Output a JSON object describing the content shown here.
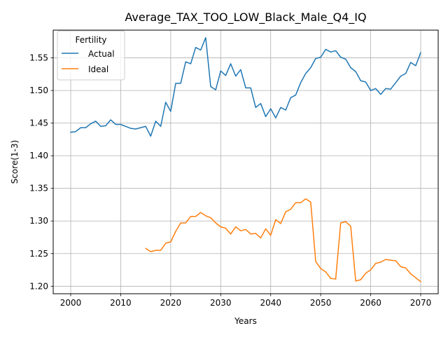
{
  "chart_data": {
    "type": "line",
    "title": "Average_TAX_TOO_LOW_Black_Male_Q4_IQ",
    "xlabel": "Years",
    "ylabel": "Score(1-3)",
    "xlim": [
      1996.5,
      2073.5
    ],
    "ylim": [
      1.1885,
      1.5925
    ],
    "xticks": [
      2000,
      2010,
      2020,
      2030,
      2040,
      2050,
      2060,
      2070
    ],
    "xtick_labels": [
      "2000",
      "2010",
      "2020",
      "2030",
      "2040",
      "2050",
      "2060",
      "2070"
    ],
    "yticks": [
      1.2,
      1.25,
      1.3,
      1.35,
      1.4,
      1.45,
      1.5,
      1.55
    ],
    "ytick_labels": [
      "1.20",
      "1.25",
      "1.30",
      "1.35",
      "1.40",
      "1.45",
      "1.50",
      "1.55"
    ],
    "grid": true,
    "legend": {
      "title": "Fertility",
      "placement": "top-left"
    },
    "series": [
      {
        "name": "Actual",
        "color": "#1f77b4",
        "x": [
          2000,
          2001,
          2002,
          2003,
          2004,
          2005,
          2006,
          2007,
          2008,
          2009,
          2010,
          2011,
          2012,
          2013,
          2014,
          2015,
          2016,
          2017,
          2018,
          2019,
          2020,
          2021,
          2022,
          2023,
          2024,
          2025,
          2026,
          2027,
          2028,
          2029,
          2030,
          2031,
          2032,
          2033,
          2034,
          2035,
          2036,
          2037,
          2038,
          2039,
          2040,
          2041,
          2042,
          2043,
          2044,
          2045,
          2046,
          2047,
          2048,
          2049,
          2050,
          2051,
          2052,
          2053,
          2054,
          2055,
          2056,
          2057,
          2058,
          2059,
          2060,
          2061,
          2062,
          2063,
          2064,
          2065,
          2066,
          2067,
          2068,
          2069,
          2070
        ],
        "values": [
          1.436,
          1.437,
          1.443,
          1.443,
          1.449,
          1.453,
          1.445,
          1.446,
          1.455,
          1.448,
          1.448,
          1.445,
          1.442,
          1.441,
          1.443,
          1.445,
          1.43,
          1.453,
          1.445,
          1.482,
          1.468,
          1.511,
          1.511,
          1.544,
          1.541,
          1.566,
          1.562,
          1.581,
          1.506,
          1.501,
          1.53,
          1.523,
          1.541,
          1.522,
          1.532,
          1.504,
          1.504,
          1.474,
          1.48,
          1.46,
          1.472,
          1.458,
          1.474,
          1.47,
          1.489,
          1.493,
          1.512,
          1.526,
          1.535,
          1.549,
          1.551,
          1.563,
          1.559,
          1.561,
          1.551,
          1.548,
          1.535,
          1.529,
          1.515,
          1.513,
          1.5,
          1.503,
          1.494,
          1.503,
          1.502,
          1.512,
          1.522,
          1.526,
          1.543,
          1.538,
          1.558
        ]
      },
      {
        "name": "Ideal",
        "color": "#ff7f0e",
        "x": [
          2015,
          2016,
          2017,
          2018,
          2019,
          2020,
          2021,
          2022,
          2023,
          2024,
          2025,
          2026,
          2027,
          2028,
          2029,
          2030,
          2031,
          2032,
          2033,
          2034,
          2035,
          2036,
          2037,
          2038,
          2039,
          2040,
          2041,
          2042,
          2043,
          2044,
          2045,
          2046,
          2047,
          2048,
          2049,
          2050,
          2051,
          2052,
          2053,
          2054,
          2055,
          2056,
          2057,
          2058,
          2059,
          2060,
          2061,
          2062,
          2063,
          2064,
          2065,
          2066,
          2067,
          2068,
          2069,
          2070
        ],
        "values": [
          1.258,
          1.253,
          1.255,
          1.255,
          1.266,
          1.268,
          1.284,
          1.297,
          1.297,
          1.307,
          1.307,
          1.313,
          1.308,
          1.305,
          1.297,
          1.291,
          1.289,
          1.28,
          1.291,
          1.285,
          1.287,
          1.28,
          1.281,
          1.274,
          1.288,
          1.278,
          1.302,
          1.296,
          1.314,
          1.318,
          1.328,
          1.328,
          1.334,
          1.329,
          1.238,
          1.227,
          1.222,
          1.212,
          1.211,
          1.297,
          1.299,
          1.292,
          1.208,
          1.21,
          1.22,
          1.225,
          1.235,
          1.237,
          1.241,
          1.24,
          1.239,
          1.23,
          1.228,
          1.219,
          1.213,
          1.207
        ]
      }
    ]
  }
}
